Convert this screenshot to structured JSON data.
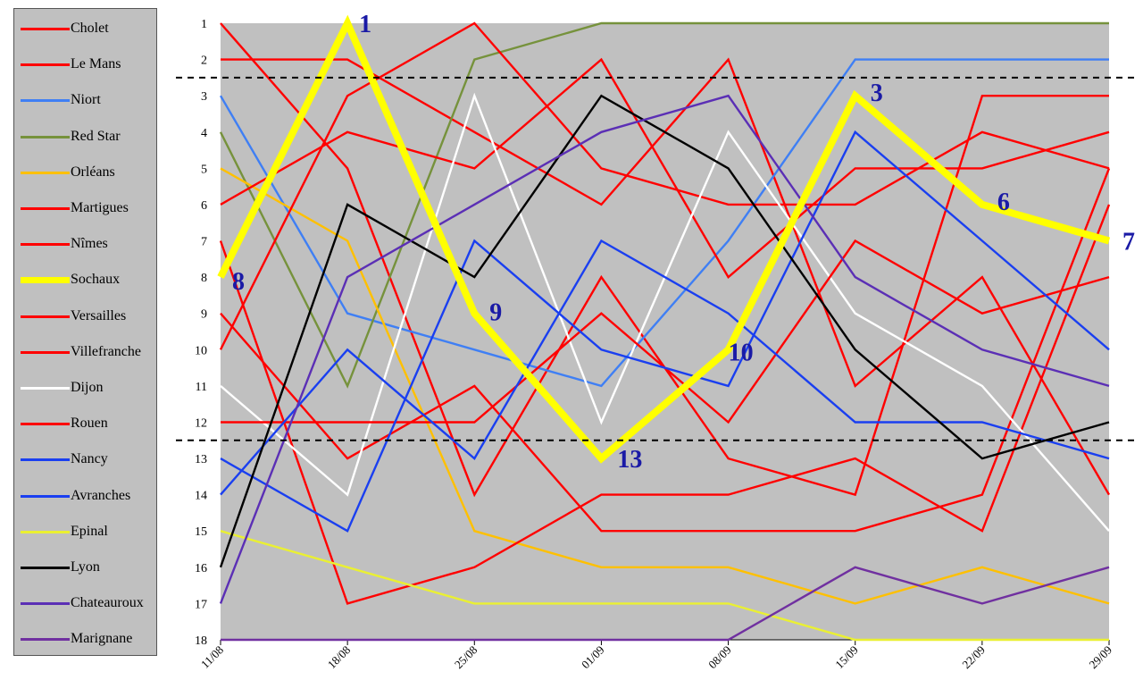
{
  "chart_data": {
    "type": "line",
    "title": "",
    "xlabel": "",
    "ylabel": "",
    "x": [
      "11/08",
      "18/08",
      "25/08",
      "01/09",
      "08/09",
      "15/09",
      "22/09",
      "29/09"
    ],
    "y_ticks": [
      "1",
      "2",
      "3",
      "4",
      "5",
      "6",
      "7",
      "8",
      "9",
      "10",
      "11",
      "12",
      "13",
      "14",
      "15",
      "16",
      "17",
      "18"
    ],
    "ylim": [
      1,
      18
    ],
    "y_inverted": true,
    "grid": false,
    "legend_position": "left",
    "reference_lines_between_ranks": [
      2.5,
      12.5
    ],
    "highlight_series": "Sochaux",
    "series": [
      {
        "name": "Cholet",
        "color": "#ff0000",
        "values": [
          1,
          5,
          14,
          8,
          13,
          14,
          3,
          3
        ]
      },
      {
        "name": "Le Mans",
        "color": "#ff0000",
        "values": [
          2,
          2,
          4,
          6,
          2,
          11,
          8,
          14
        ]
      },
      {
        "name": "Niort",
        "color": "#3f7ff4",
        "values": [
          3,
          9,
          10,
          11,
          7,
          2,
          2,
          2
        ]
      },
      {
        "name": "Red Star",
        "color": "#76923c",
        "values": [
          4,
          11,
          2,
          1,
          1,
          1,
          1,
          1
        ]
      },
      {
        "name": "Orléans",
        "color": "#ffc000",
        "values": [
          5,
          7,
          15,
          16,
          16,
          17,
          16,
          17
        ]
      },
      {
        "name": "Martigues",
        "color": "#ff0000",
        "values": [
          6,
          4,
          5,
          2,
          8,
          5,
          5,
          4
        ]
      },
      {
        "name": "Nîmes",
        "color": "#ff0000",
        "values": [
          7,
          17,
          16,
          14,
          14,
          13,
          15,
          6
        ]
      },
      {
        "name": "Sochaux",
        "color": "#ffff00",
        "values": [
          8,
          1,
          9,
          13,
          10,
          3,
          6,
          7
        ]
      },
      {
        "name": "Versailles",
        "color": "#ff0000",
        "values": [
          9,
          13,
          11,
          15,
          15,
          15,
          14,
          5
        ]
      },
      {
        "name": "Villefranche",
        "color": "#ff0000",
        "values": [
          10,
          3,
          1,
          5,
          6,
          6,
          4,
          5
        ]
      },
      {
        "name": "Dijon",
        "color": "#ffffff",
        "values": [
          11,
          14,
          3,
          12,
          4,
          9,
          11,
          15
        ]
      },
      {
        "name": "Rouen",
        "color": "#ff0000",
        "values": [
          12,
          12,
          12,
          9,
          12,
          7,
          9,
          8
        ]
      },
      {
        "name": "Nancy",
        "color": "#1a3ff0",
        "values": [
          13,
          15,
          7,
          10,
          11,
          4,
          7,
          10
        ]
      },
      {
        "name": "Avranches",
        "color": "#1a3ff0",
        "values": [
          14,
          10,
          13,
          7,
          9,
          12,
          12,
          13
        ]
      },
      {
        "name": "Epinal",
        "color": "#eaf032",
        "values": [
          15,
          16,
          17,
          17,
          17,
          18,
          18,
          18
        ]
      },
      {
        "name": "Lyon",
        "color": "#000000",
        "values": [
          16,
          6,
          8,
          3,
          5,
          10,
          13,
          12
        ]
      },
      {
        "name": "Chateauroux",
        "color": "#5b2fb5",
        "values": [
          17,
          8,
          6,
          4,
          3,
          8,
          10,
          11
        ]
      },
      {
        "name": "Marignane",
        "color": "#7030a0",
        "values": [
          18,
          18,
          18,
          18,
          18,
          16,
          17,
          16
        ]
      }
    ],
    "annotations": [
      {
        "text": "8",
        "x": "11/08",
        "y": 8
      },
      {
        "text": "1",
        "x": "18/08",
        "y": 1
      },
      {
        "text": "9",
        "x": "25/08",
        "y": 9
      },
      {
        "text": "13",
        "x": "01/09",
        "y": 13
      },
      {
        "text": "10",
        "x": "08/09",
        "y": 10
      },
      {
        "text": "3",
        "x": "15/09",
        "y": 3
      },
      {
        "text": "6",
        "x": "22/09",
        "y": 6
      },
      {
        "text": "7",
        "x": "29/09",
        "y": 7
      }
    ],
    "colors": {
      "plot_background": "#c0c0c0",
      "annotation": "#1a1aa6",
      "reference_line": "#000000"
    }
  }
}
